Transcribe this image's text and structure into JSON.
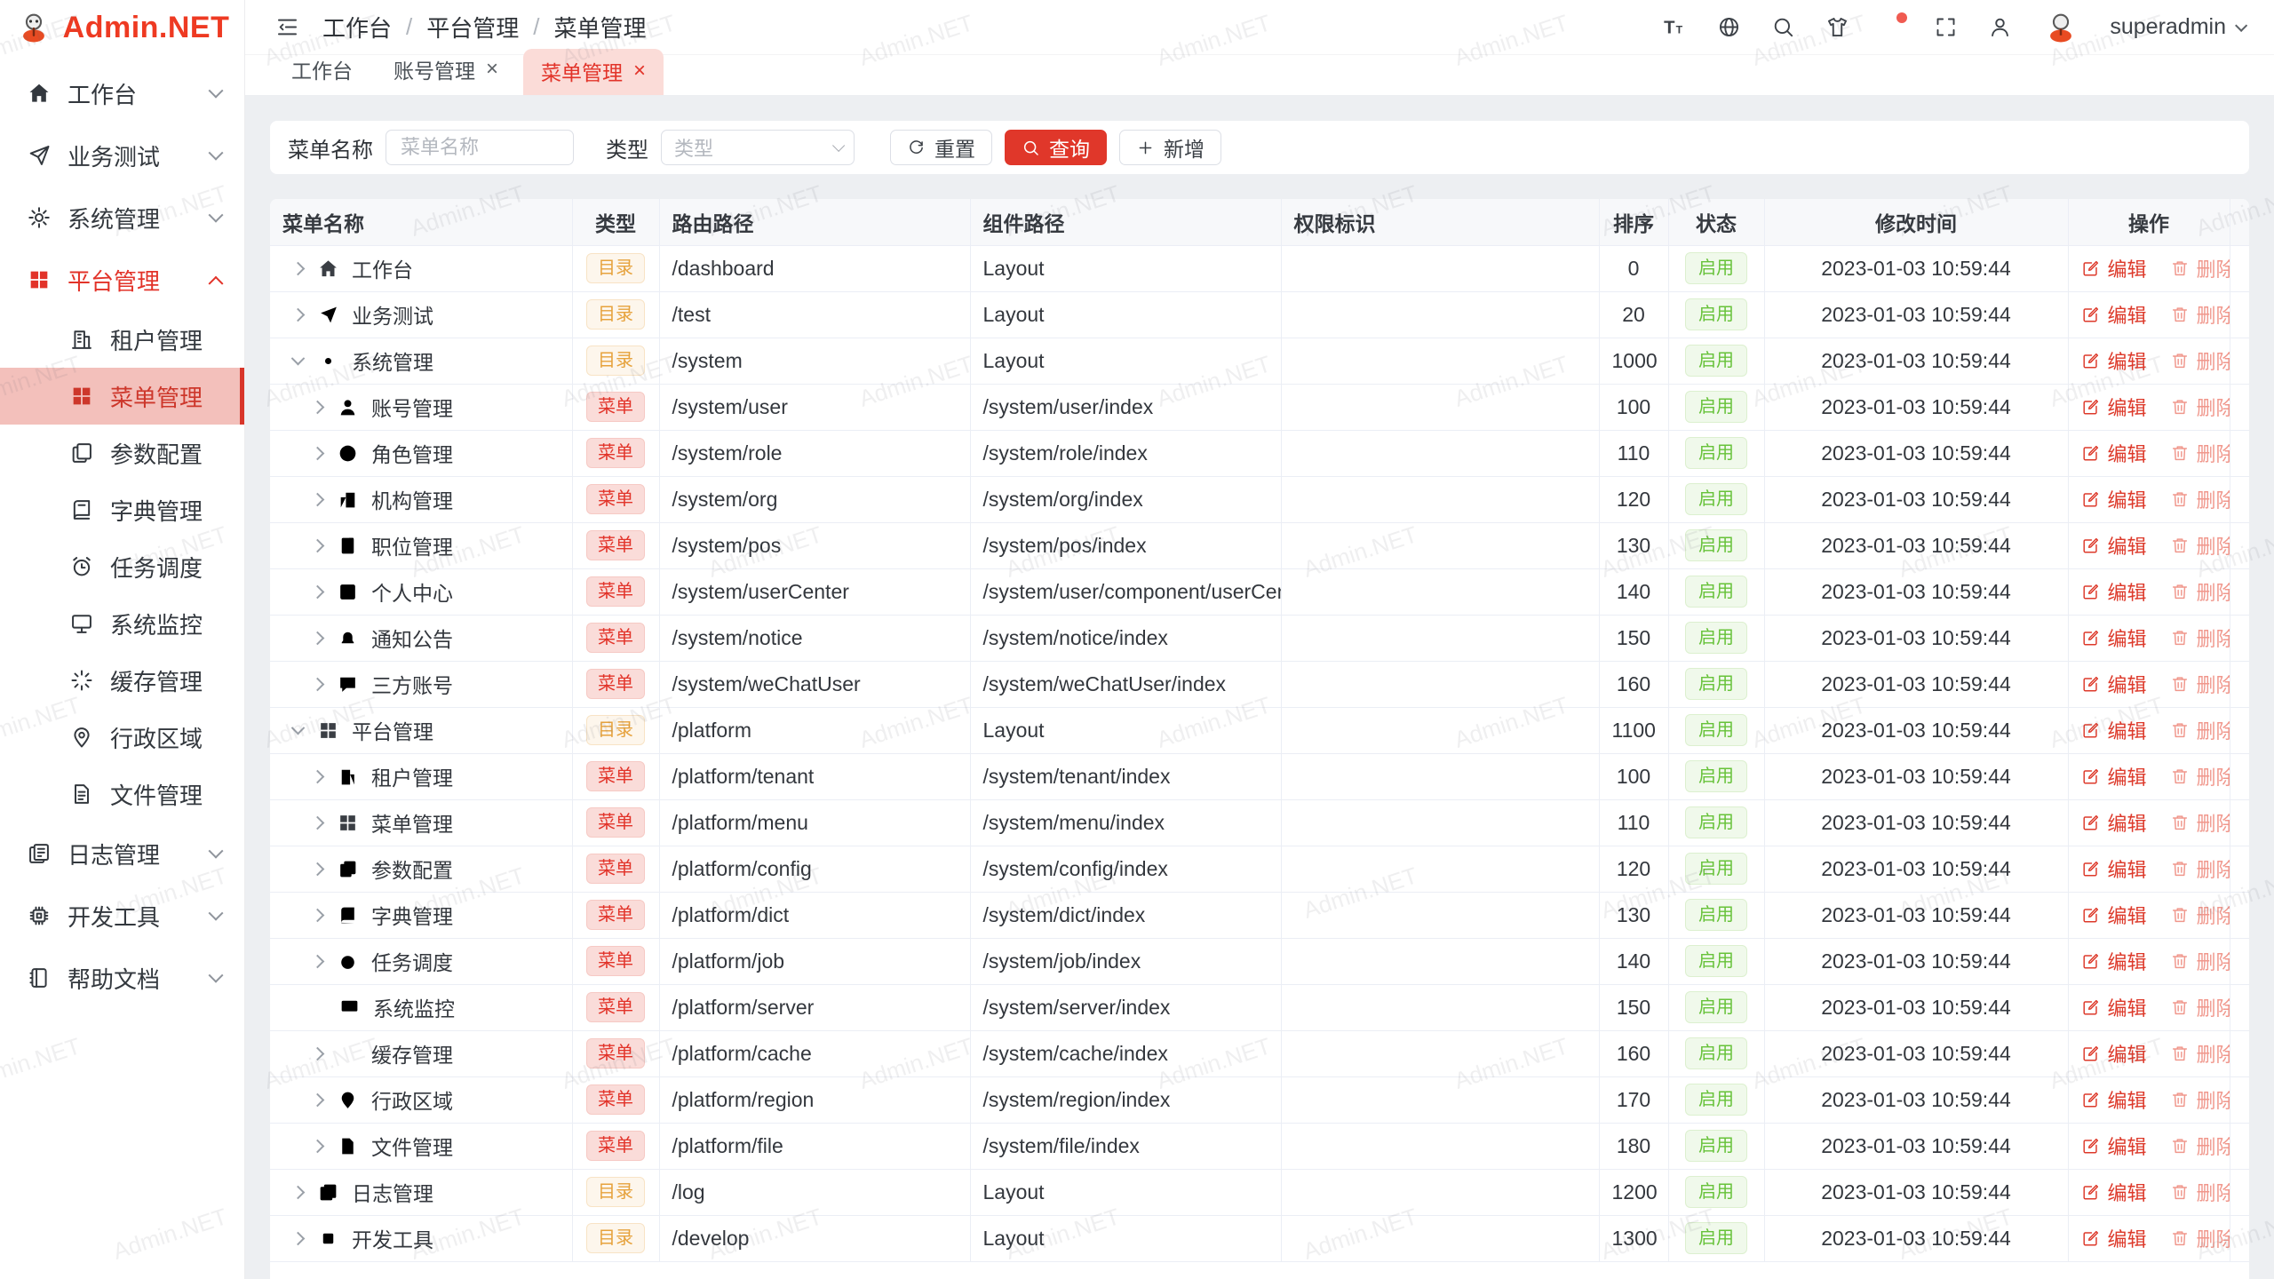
{
  "watermark": {
    "text": "Admin.NET"
  },
  "theme": {
    "primary": "#e23329",
    "primary_light_bg": "#f3c0bb",
    "tab_active_bg": "#fbdcd8",
    "warning": "#e6a23c",
    "warning_bg": "#fdf6ec",
    "danger_tag_bg": "#fadcd9",
    "success": "#67c23a",
    "success_bg": "#f0f9eb",
    "content_bg": "#edeff2",
    "table_header_bg": "#f7f8fa",
    "table_border": "#ebeef5"
  },
  "sidebar": {
    "logo_text": "Admin.NET",
    "items": [
      {
        "id": "workbench",
        "label": "工作台",
        "icon": "home-icon",
        "level": 0,
        "chevron": "down"
      },
      {
        "id": "business-test",
        "label": "业务测试",
        "icon": "send-icon",
        "level": 0,
        "chevron": "down"
      },
      {
        "id": "system",
        "label": "系统管理",
        "icon": "gear-icon",
        "level": 0,
        "chevron": "down"
      },
      {
        "id": "platform",
        "label": "平台管理",
        "icon": "grid-icon",
        "level": 0,
        "chevron": "up",
        "active": true
      },
      {
        "id": "tenant",
        "label": "租户管理",
        "icon": "tenant-icon",
        "level": 1
      },
      {
        "id": "menu",
        "label": "菜单管理",
        "icon": "grid-icon",
        "level": 1,
        "selected": true
      },
      {
        "id": "config",
        "label": "参数配置",
        "icon": "config-icon",
        "level": 1
      },
      {
        "id": "dict",
        "label": "字典管理",
        "icon": "dict-icon",
        "level": 1
      },
      {
        "id": "job",
        "label": "任务调度",
        "icon": "job-icon",
        "level": 1
      },
      {
        "id": "monitor",
        "label": "系统监控",
        "icon": "monitor-icon",
        "level": 1
      },
      {
        "id": "cache",
        "label": "缓存管理",
        "icon": "cache-icon",
        "level": 1
      },
      {
        "id": "region",
        "label": "行政区域",
        "icon": "region-icon",
        "level": 1
      },
      {
        "id": "file",
        "label": "文件管理",
        "icon": "file-icon",
        "level": 1
      },
      {
        "id": "log",
        "label": "日志管理",
        "icon": "log-icon",
        "level": 0,
        "chevron": "down"
      },
      {
        "id": "develop",
        "label": "开发工具",
        "icon": "develop-icon",
        "level": 0,
        "chevron": "down"
      },
      {
        "id": "help",
        "label": "帮助文档",
        "icon": "help-icon",
        "level": 0,
        "chevron": "down"
      }
    ]
  },
  "header": {
    "breadcrumb": [
      "工作台",
      "平台管理",
      "菜单管理"
    ],
    "action_icons": [
      "font-size-icon",
      "language-icon",
      "search-icon",
      "theme-icon",
      "notification-icon",
      "fullscreen-icon",
      "profile-icon"
    ],
    "notification_has_dot": true,
    "username": "superadmin"
  },
  "tabs": [
    {
      "label": "工作台",
      "closable": false,
      "active": false
    },
    {
      "label": "账号管理",
      "closable": true,
      "active": false
    },
    {
      "label": "菜单管理",
      "closable": true,
      "active": true
    }
  ],
  "filter": {
    "name_label": "菜单名称",
    "name_placeholder": "菜单名称",
    "name_value": "",
    "type_label": "类型",
    "type_placeholder": "类型",
    "reset_label": "重置",
    "search_label": "查询",
    "add_label": "新增"
  },
  "table": {
    "columns": [
      "菜单名称",
      "类型",
      "路由路径",
      "组件路径",
      "权限标识",
      "排序",
      "状态",
      "修改时间",
      "操作"
    ],
    "edit_label": "编辑",
    "delete_label": "删除",
    "rows": [
      {
        "name": "工作台",
        "icon": "home-icon",
        "level": 0,
        "expand": "collapsed",
        "type": "目录",
        "path": "/dashboard",
        "component": "Layout",
        "permission": "",
        "sort": "0",
        "status": "启用",
        "time": "2023-01-03 10:59:44"
      },
      {
        "name": "业务测试",
        "icon": "send-icon",
        "level": 0,
        "expand": "collapsed",
        "type": "目录",
        "path": "/test",
        "component": "Layout",
        "permission": "",
        "sort": "20",
        "status": "启用",
        "time": "2023-01-03 10:59:44"
      },
      {
        "name": "系统管理",
        "icon": "gear-icon",
        "level": 0,
        "expand": "expanded",
        "type": "目录",
        "path": "/system",
        "component": "Layout",
        "permission": "",
        "sort": "1000",
        "status": "启用",
        "time": "2023-01-03 10:59:44"
      },
      {
        "name": "账号管理",
        "icon": "user-icon",
        "level": 1,
        "expand": "collapsed",
        "type": "菜单",
        "path": "/system/user",
        "component": "/system/user/index",
        "permission": "",
        "sort": "100",
        "status": "启用",
        "time": "2023-01-03 10:59:44"
      },
      {
        "name": "角色管理",
        "icon": "role-icon",
        "level": 1,
        "expand": "collapsed",
        "type": "菜单",
        "path": "/system/role",
        "component": "/system/role/index",
        "permission": "",
        "sort": "110",
        "status": "启用",
        "time": "2023-01-03 10:59:44"
      },
      {
        "name": "机构管理",
        "icon": "org-icon",
        "level": 1,
        "expand": "collapsed",
        "type": "菜单",
        "path": "/system/org",
        "component": "/system/org/index",
        "permission": "",
        "sort": "120",
        "status": "启用",
        "time": "2023-01-03 10:59:44"
      },
      {
        "name": "职位管理",
        "icon": "pos-icon",
        "level": 1,
        "expand": "collapsed",
        "type": "菜单",
        "path": "/system/pos",
        "component": "/system/pos/index",
        "permission": "",
        "sort": "130",
        "status": "启用",
        "time": "2023-01-03 10:59:44"
      },
      {
        "name": "个人中心",
        "icon": "user-center-icon",
        "level": 1,
        "expand": "collapsed",
        "type": "菜单",
        "path": "/system/userCenter",
        "component": "/system/user/component/userCenter",
        "permission": "",
        "sort": "140",
        "status": "启用",
        "time": "2023-01-03 10:59:44"
      },
      {
        "name": "通知公告",
        "icon": "bell-icon",
        "level": 1,
        "expand": "collapsed",
        "type": "菜单",
        "path": "/system/notice",
        "component": "/system/notice/index",
        "permission": "",
        "sort": "150",
        "status": "启用",
        "time": "2023-01-03 10:59:44"
      },
      {
        "name": "三方账号",
        "icon": "chat-icon",
        "level": 1,
        "expand": "collapsed",
        "type": "菜单",
        "path": "/system/weChatUser",
        "component": "/system/weChatUser/index",
        "permission": "",
        "sort": "160",
        "status": "启用",
        "time": "2023-01-03 10:59:44"
      },
      {
        "name": "平台管理",
        "icon": "grid-icon",
        "level": 0,
        "expand": "expanded",
        "type": "目录",
        "path": "/platform",
        "component": "Layout",
        "permission": "",
        "sort": "1100",
        "status": "启用",
        "time": "2023-01-03 10:59:44"
      },
      {
        "name": "租户管理",
        "icon": "tenant-icon",
        "level": 1,
        "expand": "collapsed",
        "type": "菜单",
        "path": "/platform/tenant",
        "component": "/system/tenant/index",
        "permission": "",
        "sort": "100",
        "status": "启用",
        "time": "2023-01-03 10:59:44"
      },
      {
        "name": "菜单管理",
        "icon": "grid-icon",
        "level": 1,
        "expand": "collapsed",
        "type": "菜单",
        "path": "/platform/menu",
        "component": "/system/menu/index",
        "permission": "",
        "sort": "110",
        "status": "启用",
        "time": "2023-01-03 10:59:44"
      },
      {
        "name": "参数配置",
        "icon": "config-icon",
        "level": 1,
        "expand": "collapsed",
        "type": "菜单",
        "path": "/platform/config",
        "component": "/system/config/index",
        "permission": "",
        "sort": "120",
        "status": "启用",
        "time": "2023-01-03 10:59:44"
      },
      {
        "name": "字典管理",
        "icon": "dict-icon",
        "level": 1,
        "expand": "collapsed",
        "type": "菜单",
        "path": "/platform/dict",
        "component": "/system/dict/index",
        "permission": "",
        "sort": "130",
        "status": "启用",
        "time": "2023-01-03 10:59:44"
      },
      {
        "name": "任务调度",
        "icon": "job-icon",
        "level": 1,
        "expand": "collapsed",
        "type": "菜单",
        "path": "/platform/job",
        "component": "/system/job/index",
        "permission": "",
        "sort": "140",
        "status": "启用",
        "time": "2023-01-03 10:59:44"
      },
      {
        "name": "系统监控",
        "icon": "monitor-icon",
        "level": 1,
        "expand": "none",
        "type": "菜单",
        "path": "/platform/server",
        "component": "/system/server/index",
        "permission": "",
        "sort": "150",
        "status": "启用",
        "time": "2023-01-03 10:59:44"
      },
      {
        "name": "缓存管理",
        "icon": "cache-icon",
        "level": 1,
        "expand": "collapsed",
        "type": "菜单",
        "path": "/platform/cache",
        "component": "/system/cache/index",
        "permission": "",
        "sort": "160",
        "status": "启用",
        "time": "2023-01-03 10:59:44"
      },
      {
        "name": "行政区域",
        "icon": "region-icon",
        "level": 1,
        "expand": "collapsed",
        "type": "菜单",
        "path": "/platform/region",
        "component": "/system/region/index",
        "permission": "",
        "sort": "170",
        "status": "启用",
        "time": "2023-01-03 10:59:44"
      },
      {
        "name": "文件管理",
        "icon": "file-icon",
        "level": 1,
        "expand": "collapsed",
        "type": "菜单",
        "path": "/platform/file",
        "component": "/system/file/index",
        "permission": "",
        "sort": "180",
        "status": "启用",
        "time": "2023-01-03 10:59:44"
      },
      {
        "name": "日志管理",
        "icon": "log-icon",
        "level": 0,
        "expand": "collapsed",
        "type": "目录",
        "path": "/log",
        "component": "Layout",
        "permission": "",
        "sort": "1200",
        "status": "启用",
        "time": "2023-01-03 10:59:44"
      },
      {
        "name": "开发工具",
        "icon": "develop-icon",
        "level": 0,
        "expand": "collapsed",
        "type": "目录",
        "path": "/develop",
        "component": "Layout",
        "permission": "",
        "sort": "1300",
        "status": "启用",
        "time": "2023-01-03 10:59:44"
      }
    ]
  }
}
